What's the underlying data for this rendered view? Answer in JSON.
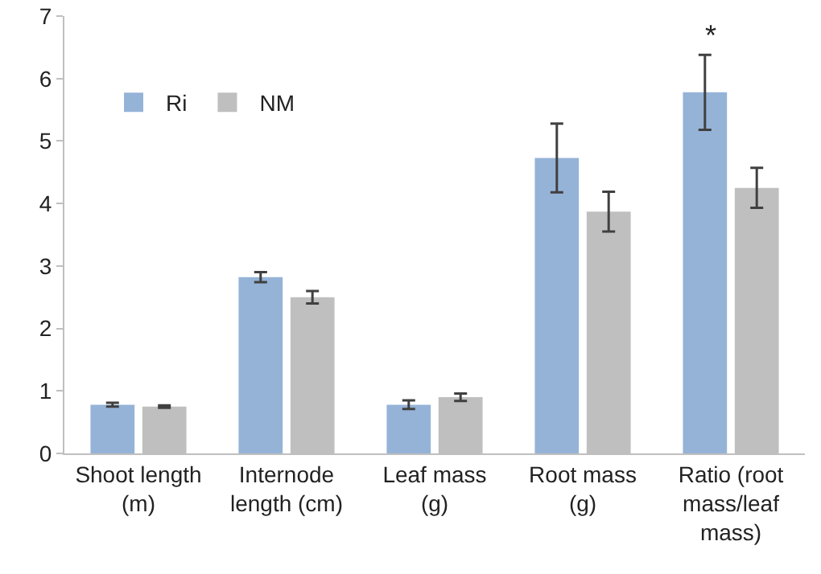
{
  "chart_data": {
    "type": "bar",
    "categories": [
      "Shoot length (m)",
      "Internode length (cm)",
      "Leaf mass (g)",
      "Root mass (g)",
      "Ratio (root mass/leaf mass)"
    ],
    "series": [
      {
        "name": "Ri",
        "color": "#95b3d7",
        "values": [
          0.78,
          2.82,
          0.78,
          4.73,
          5.78
        ],
        "errors": [
          0.03,
          0.08,
          0.07,
          0.55,
          0.6
        ]
      },
      {
        "name": "NM",
        "color": "#bfbfbf",
        "values": [
          0.75,
          2.5,
          0.9,
          3.87,
          4.25
        ],
        "errors": [
          0.02,
          0.1,
          0.06,
          0.32,
          0.32
        ]
      }
    ],
    "ylim": [
      0,
      7
    ],
    "yticks": [
      0,
      1,
      2,
      3,
      4,
      5,
      6,
      7
    ],
    "grid": false,
    "legend": "top left",
    "annotations": [
      {
        "text": "*",
        "x": "Ratio (root mass/leaf mass)",
        "y": 5.78
      }
    ]
  }
}
